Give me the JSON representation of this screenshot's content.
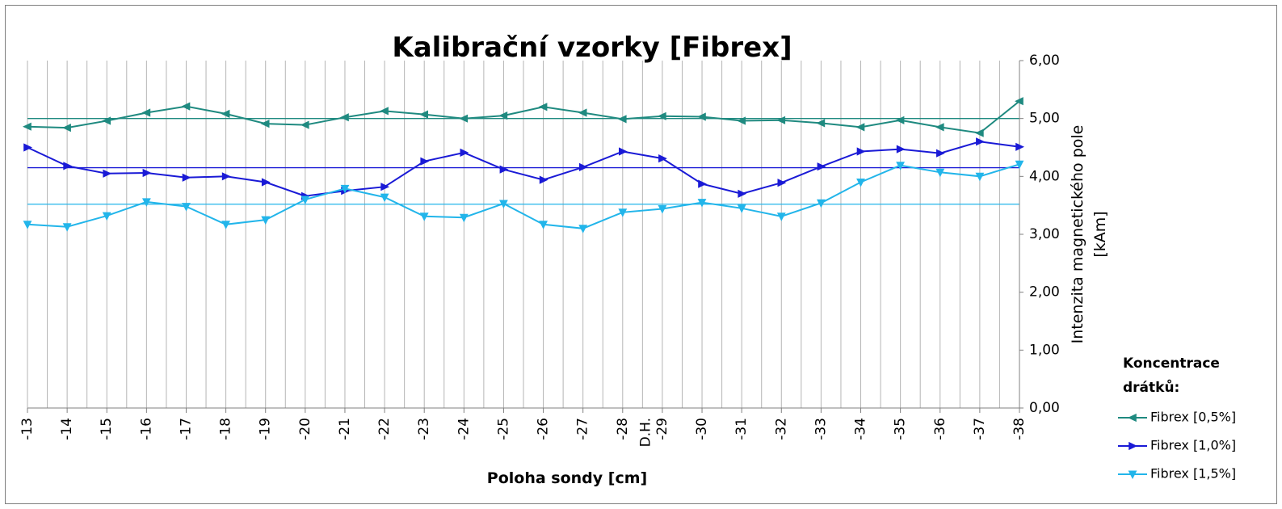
{
  "chart_data": {
    "type": "line",
    "title": "Kalibrační vzorky [Fibrex]",
    "xlabel": "Poloha sondy [cm]",
    "ylabel_line1": "Intenzita magnetického pole",
    "ylabel_line2": "[kAm]",
    "x": [
      "-13",
      "-14",
      "-15",
      "-16",
      "-17",
      "-18",
      "-19",
      "-20",
      "-21",
      "-22",
      "-23",
      "-24",
      "-25",
      "-26",
      "-27",
      "-28",
      "-29",
      "-30",
      "-31",
      "-32",
      "-33",
      "-34",
      "-35",
      "-36",
      "-37",
      "-38"
    ],
    "x_annotation": {
      "text": "D.H.",
      "at": "-29"
    },
    "ylim": [
      0,
      6
    ],
    "yticks": [
      "0,00",
      "1,00",
      "2,00",
      "3,00",
      "4,00",
      "5,00",
      "6,00"
    ],
    "grid": "vertical",
    "legend": {
      "title": "Koncentrace drátků:",
      "title_lines": [
        "Koncentrace",
        "drátků:"
      ],
      "position": "right"
    },
    "series": [
      {
        "name": "Fibrex [0,5%]",
        "color": "#1F8A80",
        "marker": "left-triangle",
        "mean": 5.0,
        "values": [
          4.86,
          4.84,
          4.96,
          5.1,
          5.21,
          5.08,
          4.91,
          4.89,
          5.02,
          5.13,
          5.07,
          5.0,
          5.05,
          5.2,
          5.1,
          4.99,
          5.04,
          5.03,
          4.96,
          4.97,
          4.92,
          4.85,
          4.97,
          4.85,
          4.75,
          5.3
        ]
      },
      {
        "name": "Fibrex [1,0%]",
        "color": "#1A1AD6",
        "marker": "right-triangle",
        "mean": 4.15,
        "values": [
          4.5,
          4.18,
          4.05,
          4.06,
          3.98,
          4.0,
          3.9,
          3.66,
          3.75,
          3.82,
          4.26,
          4.41,
          4.12,
          3.94,
          4.16,
          4.43,
          4.31,
          3.87,
          3.7,
          3.89,
          4.17,
          4.43,
          4.47,
          4.4,
          4.6,
          4.51
        ]
      },
      {
        "name": "Fibrex [1,5%]",
        "color": "#22B5EA",
        "marker": "down-triangle",
        "mean": 3.52,
        "values": [
          3.17,
          3.13,
          3.32,
          3.56,
          3.48,
          3.17,
          3.25,
          3.6,
          3.79,
          3.64,
          3.31,
          3.29,
          3.53,
          3.17,
          3.1,
          3.38,
          3.44,
          3.55,
          3.45,
          3.31,
          3.54,
          3.9,
          4.19,
          4.07,
          4.0,
          4.21
        ]
      }
    ]
  }
}
